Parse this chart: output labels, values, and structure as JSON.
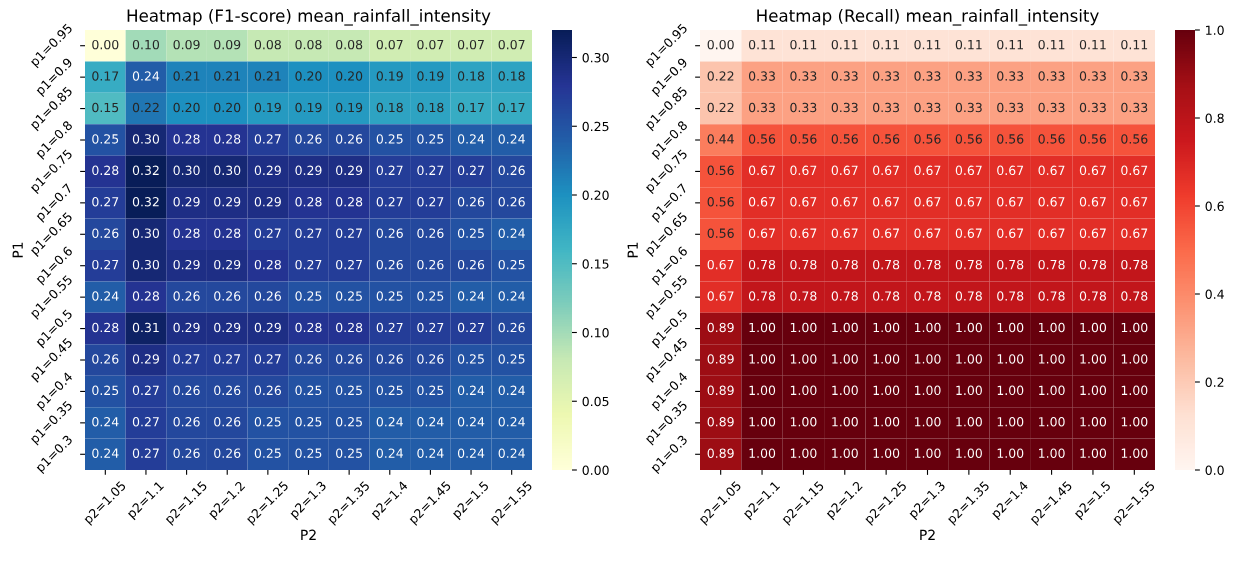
{
  "chart_data": [
    {
      "type": "heatmap",
      "title": "Heatmap (F1-score) mean_rainfall_intensity",
      "xlabel": "P2",
      "ylabel": "P1",
      "categories": [
        "p2=1.05",
        "p2=1.1",
        "p2=1.15",
        "p2=1.2",
        "p2=1.25",
        "p2=1.3",
        "p2=1.35",
        "p2=1.4",
        "p2=1.45",
        "p2=1.5",
        "p2=1.55"
      ],
      "y_categories": [
        "p1=0.95",
        "p1=0.9",
        "p1=0.85",
        "p1=0.8",
        "p1=0.75",
        "p1=0.7",
        "p1=0.65",
        "p1=0.6",
        "p1=0.55",
        "p1=0.5",
        "p1=0.45",
        "p1=0.4",
        "p1=0.35",
        "p1=0.3"
      ],
      "cells": [
        [
          0.0,
          0.1,
          0.09,
          0.09,
          0.08,
          0.08,
          0.08,
          0.07,
          0.07,
          0.07,
          0.07
        ],
        [
          0.17,
          0.24,
          0.21,
          0.21,
          0.21,
          0.2,
          0.2,
          0.19,
          0.19,
          0.18,
          0.18
        ],
        [
          0.15,
          0.22,
          0.2,
          0.2,
          0.19,
          0.19,
          0.19,
          0.18,
          0.18,
          0.17,
          0.17
        ],
        [
          0.25,
          0.3,
          0.28,
          0.28,
          0.27,
          0.26,
          0.26,
          0.25,
          0.25,
          0.24,
          0.24
        ],
        [
          0.28,
          0.32,
          0.3,
          0.3,
          0.29,
          0.29,
          0.29,
          0.27,
          0.27,
          0.27,
          0.26
        ],
        [
          0.27,
          0.32,
          0.29,
          0.29,
          0.29,
          0.28,
          0.28,
          0.27,
          0.27,
          0.26,
          0.26
        ],
        [
          0.26,
          0.3,
          0.28,
          0.28,
          0.27,
          0.27,
          0.27,
          0.26,
          0.26,
          0.25,
          0.24
        ],
        [
          0.27,
          0.3,
          0.29,
          0.29,
          0.28,
          0.27,
          0.27,
          0.26,
          0.26,
          0.26,
          0.25
        ],
        [
          0.24,
          0.28,
          0.26,
          0.26,
          0.26,
          0.25,
          0.25,
          0.25,
          0.25,
          0.24,
          0.24
        ],
        [
          0.28,
          0.31,
          0.29,
          0.29,
          0.29,
          0.28,
          0.28,
          0.27,
          0.27,
          0.27,
          0.26
        ],
        [
          0.26,
          0.29,
          0.27,
          0.27,
          0.27,
          0.26,
          0.26,
          0.26,
          0.26,
          0.25,
          0.25
        ],
        [
          0.25,
          0.27,
          0.26,
          0.26,
          0.26,
          0.25,
          0.25,
          0.25,
          0.25,
          0.24,
          0.24
        ],
        [
          0.24,
          0.27,
          0.26,
          0.26,
          0.25,
          0.25,
          0.25,
          0.24,
          0.24,
          0.24,
          0.24
        ],
        [
          0.24,
          0.27,
          0.26,
          0.26,
          0.25,
          0.25,
          0.25,
          0.24,
          0.24,
          0.24,
          0.24
        ]
      ],
      "cell_labels": [
        [
          "0.00",
          "0.10",
          "0.09",
          "0.09",
          "0.08",
          "0.08",
          "0.08",
          "0.07",
          "0.07",
          "0.07",
          "0.07"
        ],
        [
          "0.17",
          "0.24",
          "0.21",
          "0.21",
          "0.21",
          "0.20",
          "0.20",
          "0.19",
          "0.19",
          "0.18",
          "0.18"
        ],
        [
          "0.15",
          "0.22",
          "0.20",
          "0.20",
          "0.19",
          "0.19",
          "0.19",
          "0.18",
          "0.18",
          "0.17",
          "0.17"
        ],
        [
          "0.25",
          "0.30",
          "0.28",
          "0.28",
          "0.27",
          "0.26",
          "0.26",
          "0.25",
          "0.25",
          "0.24",
          "0.24"
        ],
        [
          "0.28",
          "0.32",
          "0.30",
          "0.30",
          "0.29",
          "0.29",
          "0.29",
          "0.27",
          "0.27",
          "0.27",
          "0.26"
        ],
        [
          "0.27",
          "0.32",
          "0.29",
          "0.29",
          "0.29",
          "0.28",
          "0.28",
          "0.27",
          "0.27",
          "0.26",
          "0.26"
        ],
        [
          "0.26",
          "0.30",
          "0.28",
          "0.28",
          "0.27",
          "0.27",
          "0.27",
          "0.26",
          "0.26",
          "0.25",
          "0.24"
        ],
        [
          "0.27",
          "0.30",
          "0.29",
          "0.29",
          "0.28",
          "0.27",
          "0.27",
          "0.26",
          "0.26",
          "0.26",
          "0.25"
        ],
        [
          "0.24",
          "0.28",
          "0.26",
          "0.26",
          "0.26",
          "0.25",
          "0.25",
          "0.25",
          "0.25",
          "0.24",
          "0.24"
        ],
        [
          "0.28",
          "0.31",
          "0.29",
          "0.29",
          "0.29",
          "0.28",
          "0.28",
          "0.27",
          "0.27",
          "0.27",
          "0.26"
        ],
        [
          "0.26",
          "0.29",
          "0.27",
          "0.27",
          "0.27",
          "0.26",
          "0.26",
          "0.26",
          "0.26",
          "0.25",
          "0.25"
        ],
        [
          "0.25",
          "0.27",
          "0.26",
          "0.26",
          "0.26",
          "0.25",
          "0.25",
          "0.25",
          "0.25",
          "0.24",
          "0.24"
        ],
        [
          "0.24",
          "0.27",
          "0.26",
          "0.26",
          "0.25",
          "0.25",
          "0.25",
          "0.24",
          "0.24",
          "0.24",
          "0.24"
        ],
        [
          "0.24",
          "0.27",
          "0.26",
          "0.26",
          "0.25",
          "0.25",
          "0.25",
          "0.24",
          "0.24",
          "0.24",
          "0.24"
        ]
      ],
      "data_labels": true,
      "clim": [
        0,
        0.32
      ],
      "cticks": [
        {
          "value": 0,
          "label": "0.00"
        },
        0.05,
        {
          "value": 0.1,
          "label": "0.10"
        },
        0.15,
        {
          "value": 0.2,
          "label": "0.20"
        },
        0.25,
        {
          "value": 0.3,
          "label": "0.30"
        }
      ]
    },
    {
      "type": "heatmap",
      "title": "Heatmap (Recall) mean_rainfall_intensity",
      "xlabel": "P2",
      "ylabel": "P1",
      "categories": [
        "p2=1.05",
        "p2=1.1",
        "p2=1.15",
        "p2=1.2",
        "p2=1.25",
        "p2=1.3",
        "p2=1.35",
        "p2=1.4",
        "p2=1.45",
        "p2=1.5",
        "p2=1.55"
      ],
      "y_categories": [
        "p1=0.95",
        "p1=0.9",
        "p1=0.85",
        "p1=0.8",
        "p1=0.75",
        "p1=0.7",
        "p1=0.65",
        "p1=0.6",
        "p1=0.55",
        "p1=0.5",
        "p1=0.45",
        "p1=0.4",
        "p1=0.35",
        "p1=0.3"
      ],
      "cells": [
        [
          0.0,
          0.11,
          0.11,
          0.11,
          0.11,
          0.11,
          0.11,
          0.11,
          0.11,
          0.11,
          0.11
        ],
        [
          0.22,
          0.33,
          0.33,
          0.33,
          0.33,
          0.33,
          0.33,
          0.33,
          0.33,
          0.33,
          0.33
        ],
        [
          0.22,
          0.33,
          0.33,
          0.33,
          0.33,
          0.33,
          0.33,
          0.33,
          0.33,
          0.33,
          0.33
        ],
        [
          0.44,
          0.56,
          0.56,
          0.56,
          0.56,
          0.56,
          0.56,
          0.56,
          0.56,
          0.56,
          0.56
        ],
        [
          0.56,
          0.67,
          0.67,
          0.67,
          0.67,
          0.67,
          0.67,
          0.67,
          0.67,
          0.67,
          0.67
        ],
        [
          0.56,
          0.67,
          0.67,
          0.67,
          0.67,
          0.67,
          0.67,
          0.67,
          0.67,
          0.67,
          0.67
        ],
        [
          0.56,
          0.67,
          0.67,
          0.67,
          0.67,
          0.67,
          0.67,
          0.67,
          0.67,
          0.67,
          0.67
        ],
        [
          0.67,
          0.78,
          0.78,
          0.78,
          0.78,
          0.78,
          0.78,
          0.78,
          0.78,
          0.78,
          0.78
        ],
        [
          0.67,
          0.78,
          0.78,
          0.78,
          0.78,
          0.78,
          0.78,
          0.78,
          0.78,
          0.78,
          0.78
        ],
        [
          0.89,
          1.0,
          1.0,
          1.0,
          1.0,
          1.0,
          1.0,
          1.0,
          1.0,
          1.0,
          1.0
        ],
        [
          0.89,
          1.0,
          1.0,
          1.0,
          1.0,
          1.0,
          1.0,
          1.0,
          1.0,
          1.0,
          1.0
        ],
        [
          0.89,
          1.0,
          1.0,
          1.0,
          1.0,
          1.0,
          1.0,
          1.0,
          1.0,
          1.0,
          1.0
        ],
        [
          0.89,
          1.0,
          1.0,
          1.0,
          1.0,
          1.0,
          1.0,
          1.0,
          1.0,
          1.0,
          1.0
        ],
        [
          0.89,
          1.0,
          1.0,
          1.0,
          1.0,
          1.0,
          1.0,
          1.0,
          1.0,
          1.0,
          1.0
        ]
      ],
      "cell_labels": [
        [
          "0.00",
          "0.11",
          "0.11",
          "0.11",
          "0.11",
          "0.11",
          "0.11",
          "0.11",
          "0.11",
          "0.11",
          "0.11"
        ],
        [
          "0.22",
          "0.33",
          "0.33",
          "0.33",
          "0.33",
          "0.33",
          "0.33",
          "0.33",
          "0.33",
          "0.33",
          "0.33"
        ],
        [
          "0.22",
          "0.33",
          "0.33",
          "0.33",
          "0.33",
          "0.33",
          "0.33",
          "0.33",
          "0.33",
          "0.33",
          "0.33"
        ],
        [
          "0.44",
          "0.56",
          "0.56",
          "0.56",
          "0.56",
          "0.56",
          "0.56",
          "0.56",
          "0.56",
          "0.56",
          "0.56"
        ],
        [
          "0.56",
          "0.67",
          "0.67",
          "0.67",
          "0.67",
          "0.67",
          "0.67",
          "0.67",
          "0.67",
          "0.67",
          "0.67"
        ],
        [
          "0.56",
          "0.67",
          "0.67",
          "0.67",
          "0.67",
          "0.67",
          "0.67",
          "0.67",
          "0.67",
          "0.67",
          "0.67"
        ],
        [
          "0.56",
          "0.67",
          "0.67",
          "0.67",
          "0.67",
          "0.67",
          "0.67",
          "0.67",
          "0.67",
          "0.67",
          "0.67"
        ],
        [
          "0.67",
          "0.78",
          "0.78",
          "0.78",
          "0.78",
          "0.78",
          "0.78",
          "0.78",
          "0.78",
          "0.78",
          "0.78"
        ],
        [
          "0.67",
          "0.78",
          "0.78",
          "0.78",
          "0.78",
          "0.78",
          "0.78",
          "0.78",
          "0.78",
          "0.78",
          "0.78"
        ],
        [
          "0.89",
          "1.00",
          "1.00",
          "1.00",
          "1.00",
          "1.00",
          "1.00",
          "1.00",
          "1.00",
          "1.00",
          "1.00"
        ],
        [
          "0.89",
          "1.00",
          "1.00",
          "1.00",
          "1.00",
          "1.00",
          "1.00",
          "1.00",
          "1.00",
          "1.00",
          "1.00"
        ],
        [
          "0.89",
          "1.00",
          "1.00",
          "1.00",
          "1.00",
          "1.00",
          "1.00",
          "1.00",
          "1.00",
          "1.00",
          "1.00"
        ],
        [
          "0.89",
          "1.00",
          "1.00",
          "1.00",
          "1.00",
          "1.00",
          "1.00",
          "1.00",
          "1.00",
          "1.00",
          "1.00"
        ],
        [
          "0.89",
          "1.00",
          "1.00",
          "1.00",
          "1.00",
          "1.00",
          "1.00",
          "1.00",
          "1.00",
          "1.00",
          "1.00"
        ]
      ],
      "data_labels": true,
      "clim": [
        0,
        1
      ],
      "cticks": [
        {
          "value": 0,
          "label": "0.0"
        },
        0.2,
        0.4,
        0.6,
        0.8,
        {
          "value": 1,
          "label": "1.0"
        }
      ]
    }
  ]
}
